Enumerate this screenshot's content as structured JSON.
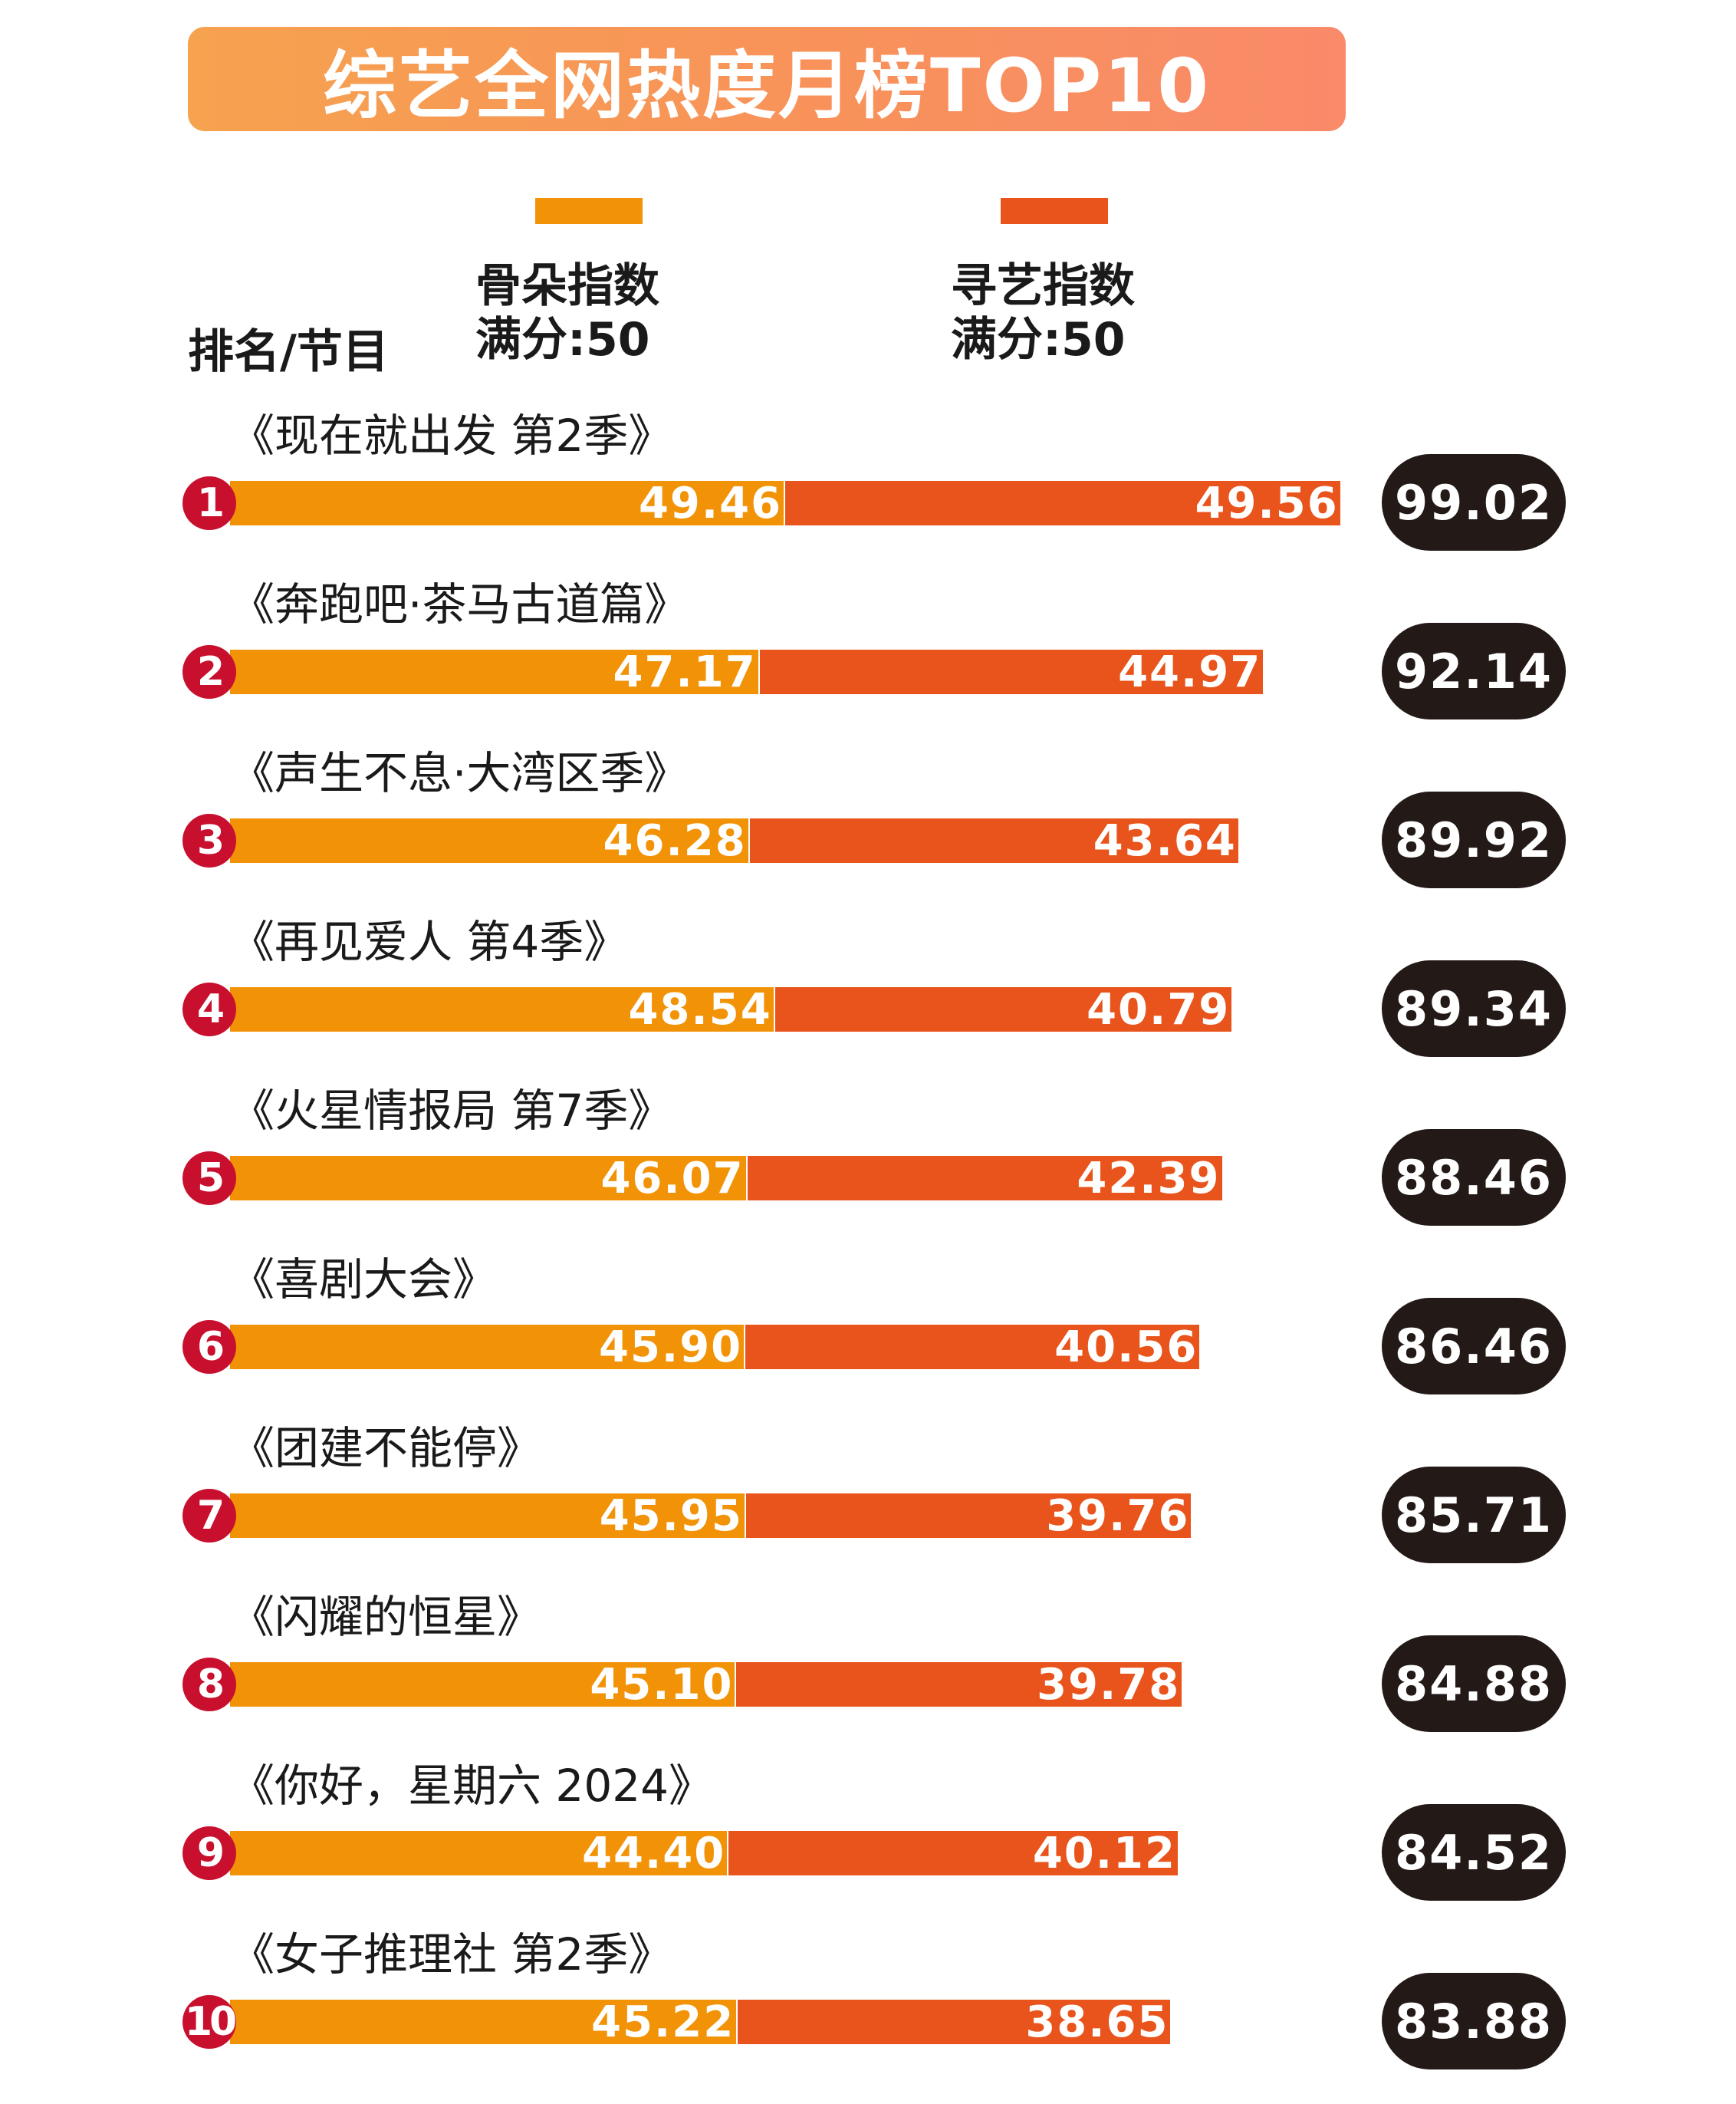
{
  "title": "综艺全网热度月榜TOP10",
  "header": {
    "rank_label": "排名/节目"
  },
  "legend": [
    {
      "line1": "骨朵指数",
      "line2": "满分:50",
      "color": "#f29307"
    },
    {
      "line1": "寻艺指数",
      "line2": "满分:50",
      "color": "#e8541b"
    }
  ],
  "chart_data": {
    "type": "bar",
    "stacked": true,
    "orientation": "horizontal",
    "title": "综艺全网热度月榜TOP10",
    "max_per_series": 50,
    "categories": [
      "《现在就出发 第2季》",
      "《奔跑吧·茶马古道篇》",
      "《声生不息·大湾区季》",
      "《再见爱人 第4季》",
      "《火星情报局 第7季》",
      "《喜剧大会》",
      "《团建不能停》",
      "《闪耀的恒星》",
      "《你好，星期六 2024》",
      "《女子推理社 第2季》"
    ],
    "ranks": [
      "1",
      "2",
      "3",
      "4",
      "5",
      "6",
      "7",
      "8",
      "9",
      "10"
    ],
    "series": [
      {
        "name": "骨朵指数",
        "values": [
          49.46,
          47.17,
          46.28,
          48.54,
          46.07,
          45.9,
          45.95,
          45.1,
          44.4,
          45.22
        ],
        "labels": [
          "49.46",
          "47.17",
          "46.28",
          "48.54",
          "46.07",
          "45.90",
          "45.95",
          "45.10",
          "44.40",
          "45.22"
        ]
      },
      {
        "name": "寻艺指数",
        "values": [
          49.56,
          44.97,
          43.64,
          40.79,
          42.39,
          40.56,
          39.76,
          39.78,
          40.12,
          38.65
        ],
        "labels": [
          "49.56",
          "44.97",
          "43.64",
          "40.79",
          "42.39",
          "40.56",
          "39.76",
          "39.78",
          "40.12",
          "38.65"
        ]
      }
    ],
    "totals": [
      99.02,
      92.14,
      89.92,
      89.34,
      88.46,
      86.46,
      85.71,
      84.88,
      84.52,
      83.88
    ],
    "total_labels": [
      "99.02",
      "92.14",
      "89.92",
      "89.34",
      "88.46",
      "86.46",
      "85.71",
      "84.88",
      "84.52",
      "83.88"
    ]
  }
}
